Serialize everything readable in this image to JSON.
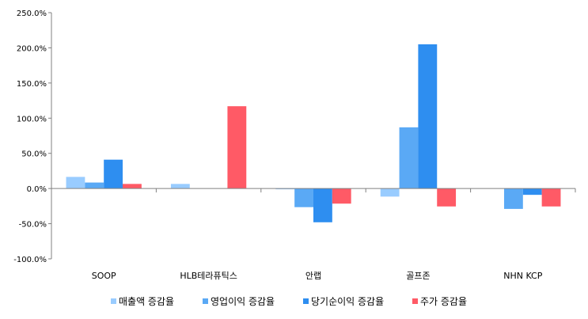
{
  "chart_data": {
    "type": "bar",
    "categories": [
      "SOOP",
      "HLB테라퓨틱스",
      "안랩",
      "골프존",
      "NHN KCP"
    ],
    "series": [
      {
        "name": "매출액 증감율",
        "color": "#99ccff",
        "values": [
          16.5,
          6.5,
          -1.0,
          -11.5,
          0.0
        ]
      },
      {
        "name": "영업이익 증감율",
        "color": "#5aa9f5",
        "values": [
          8.5,
          0.0,
          -26.5,
          87.0,
          -29.0
        ]
      },
      {
        "name": "당기순이익 증감율",
        "color": "#2e8ef0",
        "values": [
          41.0,
          0.0,
          -48.0,
          205.0,
          -9.0
        ]
      },
      {
        "name": "주가 증감율",
        "color": "#ff5a66",
        "values": [
          6.5,
          117.0,
          -21.5,
          -25.5,
          -25.5
        ]
      }
    ],
    "y_ticks": [
      "250.0%",
      "200.0%",
      "150.0%",
      "100.0%",
      "50.0%",
      "0.0%",
      "-50.0%",
      "-100.0%"
    ],
    "ylim": [
      -100,
      250
    ],
    "grid": false,
    "legend_position": "bottom",
    "title": "",
    "xlabel": "",
    "ylabel": ""
  }
}
